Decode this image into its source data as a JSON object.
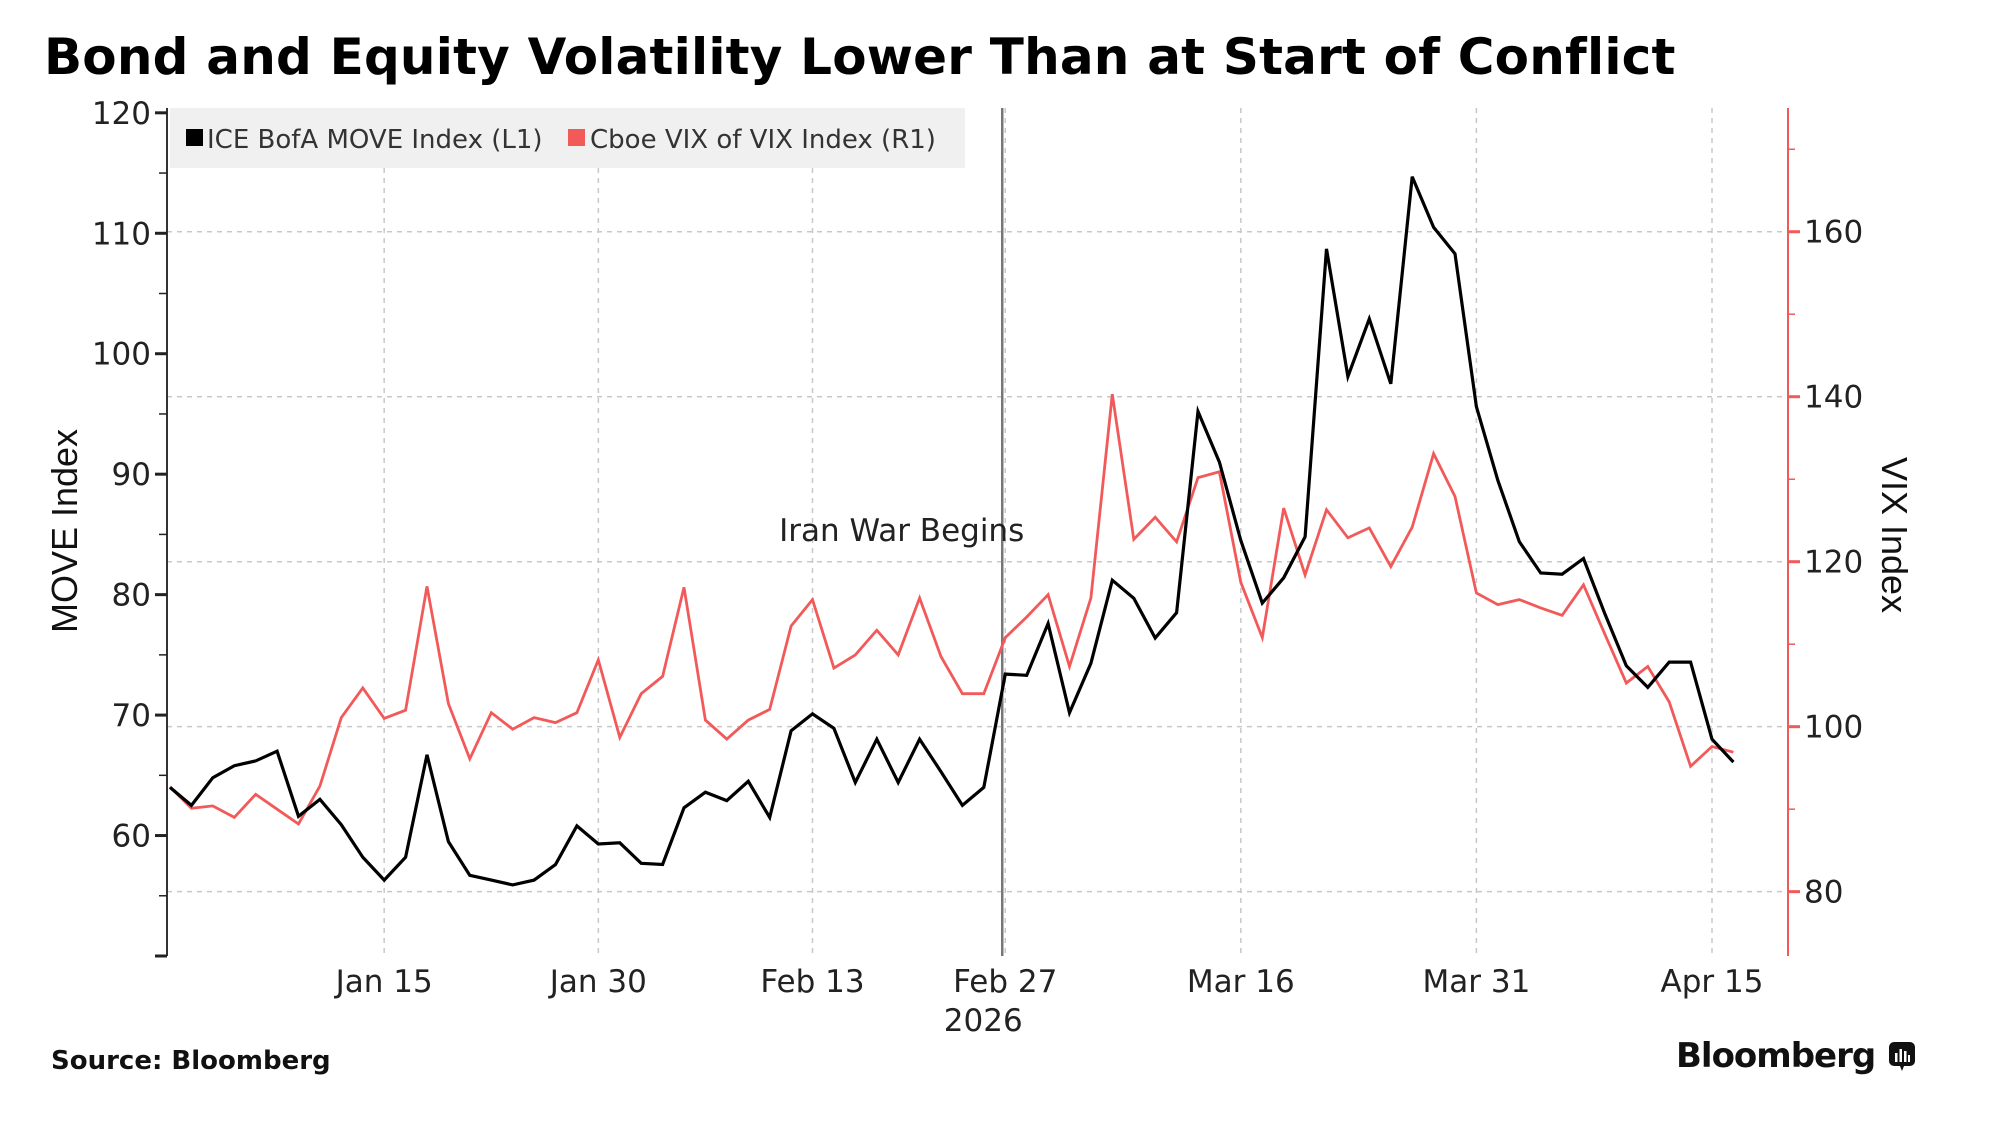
{
  "chart_data": {
    "type": "line",
    "title": "Bond and Equity Volatility Lower Than at Start of Conflict",
    "x": [
      "2025-12-31",
      "2026-01-02",
      "2026-01-05",
      "2026-01-06",
      "2026-01-07",
      "2026-01-08",
      "2026-01-09",
      "2026-01-12",
      "2026-01-13",
      "2026-01-14",
      "2026-01-15",
      "2026-01-16",
      "2026-01-20",
      "2026-01-21",
      "2026-01-22",
      "2026-01-23",
      "2026-01-26",
      "2026-01-27",
      "2026-01-28",
      "2026-01-29",
      "2026-01-30",
      "2026-02-02",
      "2026-02-03",
      "2026-02-04",
      "2026-02-05",
      "2026-02-06",
      "2026-02-09",
      "2026-02-10",
      "2026-02-11",
      "2026-02-12",
      "2026-02-13",
      "2026-02-17",
      "2026-02-18",
      "2026-02-19",
      "2026-02-20",
      "2026-02-23",
      "2026-02-24",
      "2026-02-25",
      "2026-02-26",
      "2026-02-27",
      "2026-03-02",
      "2026-03-03",
      "2026-03-04",
      "2026-03-05",
      "2026-03-06",
      "2026-03-09",
      "2026-03-10",
      "2026-03-11",
      "2026-03-12",
      "2026-03-13",
      "2026-03-16",
      "2026-03-17",
      "2026-03-18",
      "2026-03-19",
      "2026-03-20",
      "2026-03-23",
      "2026-03-24",
      "2026-03-25",
      "2026-03-26",
      "2026-03-27",
      "2026-03-30",
      "2026-03-31",
      "2026-04-01",
      "2026-04-02",
      "2026-04-03",
      "2026-04-06",
      "2026-04-07",
      "2026-04-08",
      "2026-04-09",
      "2026-04-10",
      "2026-04-13",
      "2026-04-14",
      "2026-04-15",
      "2026-04-16"
    ],
    "series": [
      {
        "name": "ICE BofA MOVE Index (L1)",
        "axis": "left",
        "color": "#000000",
        "values": [
          64.0,
          62.5,
          64.8,
          65.8,
          66.2,
          67.0,
          61.6,
          63.0,
          60.9,
          58.2,
          56.3,
          58.2,
          66.7,
          59.5,
          56.7,
          56.3,
          55.9,
          56.3,
          57.6,
          60.8,
          59.3,
          59.4,
          57.7,
          57.6,
          62.3,
          63.6,
          62.9,
          64.5,
          61.5,
          68.7,
          70.1,
          68.9,
          64.4,
          68.0,
          64.4,
          68.0,
          65.3,
          62.5,
          64.0,
          73.4,
          73.3,
          77.6,
          70.2,
          74.3,
          81.2,
          79.7,
          76.4,
          78.5,
          95.2,
          91.0,
          84.5,
          79.3,
          81.4,
          84.8,
          108.7,
          98.1,
          102.9,
          97.5,
          114.7,
          110.5,
          108.3,
          95.6,
          89.5,
          84.4,
          81.8,
          81.7,
          83.0,
          78.4,
          74.1,
          72.3,
          74.4,
          74.4,
          68.0,
          66.1
        ]
      },
      {
        "name": "Cboe VIX of VIX Index (R1)",
        "axis": "right",
        "color": "#f25a5a",
        "values": [
          92.7,
          90.1,
          90.4,
          89.0,
          91.8,
          90.0,
          88.2,
          92.8,
          101.1,
          104.7,
          101.0,
          102.0,
          117.0,
          102.8,
          96.1,
          101.7,
          99.7,
          101.1,
          100.5,
          101.7,
          108.1,
          98.7,
          104.0,
          106.1,
          116.9,
          100.8,
          98.5,
          100.8,
          102.1,
          112.2,
          115.4,
          107.1,
          108.7,
          111.7,
          108.7,
          115.6,
          108.5,
          104.0,
          104.0,
          110.8,
          113.3,
          116.0,
          107.3,
          115.6,
          140.3,
          122.7,
          125.4,
          122.4,
          130.2,
          130.9,
          117.5,
          110.8,
          126.5,
          118.4,
          126.3,
          122.9,
          124.1,
          119.4,
          124.2,
          133.1,
          127.9,
          116.2,
          114.8,
          115.4,
          114.4,
          113.5,
          117.2,
          111.2,
          105.3,
          107.3,
          103.0,
          95.2,
          97.6,
          96.9
        ]
      }
    ],
    "xticks": [
      {
        "index": 10,
        "label": "Jan 15"
      },
      {
        "index": 20,
        "label": "Jan 30"
      },
      {
        "index": 30,
        "label": "Feb 13"
      },
      {
        "index": 39,
        "label": "Feb 27",
        "sublabel": "2026"
      },
      {
        "index": 50,
        "label": "Mar 16"
      },
      {
        "index": 61,
        "label": "Mar 31"
      },
      {
        "index": 72,
        "label": "Apr 15"
      }
    ],
    "ylabel_left": "MOVE Index",
    "ylabel_right": "VIX Index",
    "ylim_left": [
      50,
      120.4
    ],
    "ylim_right": [
      72.2,
      175
    ],
    "yticks_left": [
      60,
      70,
      80,
      90,
      100,
      110,
      120
    ],
    "yticks_right": [
      80,
      100,
      120,
      140,
      160
    ],
    "grid": true,
    "legend_position": "top-left",
    "annotations": [
      {
        "index": 39,
        "label": "Iran War Begins",
        "type": "vertical-line"
      }
    ]
  },
  "footer": {
    "source": "Source: Bloomberg",
    "brand": "Bloomberg"
  },
  "colors": {
    "move": "#000000",
    "vvix": "#f25a5a",
    "legend_bg": "#f0f0f0",
    "grid": "#c8c8c8"
  }
}
